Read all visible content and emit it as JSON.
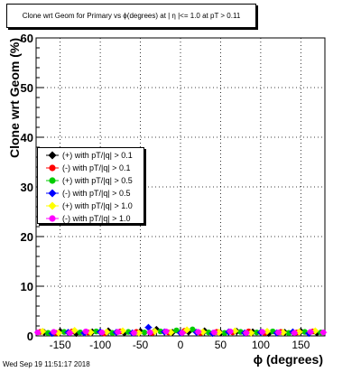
{
  "chart_data": {
    "type": "scatter",
    "title": "Clone wrt Geom for Primary vs ϕ(degrees) at | η |<= 1.0 at pT > 0.11",
    "xlabel": "ϕ (degrees)",
    "ylabel": "Clone wrt Geom (%)",
    "xlim": [
      -180,
      180
    ],
    "ylim": [
      0,
      60
    ],
    "x_ticks": [
      -150,
      -100,
      -50,
      0,
      50,
      100,
      150
    ],
    "y_ticks": [
      0,
      10,
      20,
      30,
      40,
      50,
      60
    ],
    "grid": true,
    "legend_position": "left-middle",
    "series": [
      {
        "name": "(+) with pT/|q| > 0.1",
        "color": "#000000",
        "marker": "diamond",
        "x": [
          -170,
          -150,
          -130,
          -110,
          -90,
          -70,
          -50,
          -30,
          -10,
          10,
          30,
          50,
          70,
          90,
          110,
          130,
          150,
          170
        ],
        "values": [
          0.7,
          0.9,
          0.5,
          0.8,
          1.0,
          0.6,
          0.9,
          1.3,
          0.7,
          0.8,
          1.0,
          0.6,
          0.9,
          0.8,
          0.5,
          0.7,
          0.9,
          0.6
        ]
      },
      {
        "name": "(-) with pT/|q| > 0.1",
        "color": "#ff0000",
        "marker": "circle",
        "x": [
          -175,
          -155,
          -135,
          -115,
          -95,
          -75,
          -55,
          -35,
          -15,
          5,
          25,
          45,
          65,
          85,
          105,
          125,
          145,
          165
        ],
        "values": [
          0.8,
          0.6,
          0.9,
          0.7,
          0.5,
          0.9,
          0.8,
          0.6,
          0.7,
          1.0,
          0.6,
          0.8,
          0.7,
          0.9,
          0.6,
          0.8,
          0.7,
          0.9
        ]
      },
      {
        "name": "(+) with pT/|q| > 0.5",
        "color": "#00cc00",
        "marker": "circle",
        "x": [
          -165,
          -145,
          -125,
          -105,
          -85,
          -65,
          -45,
          -25,
          -5,
          15,
          35,
          55,
          75,
          95,
          115,
          135,
          155,
          175
        ],
        "values": [
          0.6,
          0.8,
          0.7,
          0.9,
          0.6,
          0.8,
          0.7,
          0.9,
          1.1,
          1.3,
          0.7,
          0.6,
          0.8,
          0.7,
          0.9,
          0.6,
          0.8,
          0.7
        ]
      },
      {
        "name": "(-) with pT/|q| > 0.5",
        "color": "#0000ff",
        "marker": "diamond",
        "x": [
          -160,
          -140,
          -120,
          -100,
          -80,
          -60,
          -40,
          -20,
          0,
          20,
          40,
          60,
          80,
          100,
          120,
          140,
          160
        ],
        "values": [
          0.5,
          0.7,
          0.6,
          0.8,
          0.7,
          0.6,
          1.7,
          0.8,
          0.6,
          0.7,
          0.5,
          0.8,
          0.6,
          0.7,
          0.6,
          0.8,
          0.5
        ]
      },
      {
        "name": "(+) with pT/|q| > 1.0",
        "color": "#ffff00",
        "marker": "diamond",
        "x": [
          -172,
          -152,
          -132,
          -112,
          -92,
          -72,
          -52,
          -32,
          -12,
          8,
          28,
          48,
          68,
          88,
          108,
          128,
          148,
          168
        ],
        "values": [
          0.9,
          0.6,
          1.1,
          0.7,
          0.8,
          1.0,
          0.6,
          0.9,
          0.7,
          1.2,
          0.8,
          0.7,
          1.0,
          0.6,
          0.9,
          0.7,
          0.8,
          1.0
        ]
      },
      {
        "name": "(-) with pT/|q| > 1.0",
        "color": "#ff00ff",
        "marker": "circle",
        "x": [
          -178,
          -158,
          -138,
          -118,
          -98,
          -78,
          -58,
          -38,
          -18,
          2,
          22,
          42,
          62,
          82,
          102,
          122,
          142,
          162,
          178
        ],
        "values": [
          0.7,
          0.8,
          0.6,
          0.9,
          0.7,
          0.8,
          0.6,
          0.7,
          0.9,
          0.6,
          0.8,
          0.7,
          0.9,
          0.6,
          0.8,
          0.7,
          0.6,
          0.8,
          0.7
        ]
      }
    ]
  },
  "footer": {
    "timestamp": "Wed Sep 19 11:51:17 2018"
  }
}
